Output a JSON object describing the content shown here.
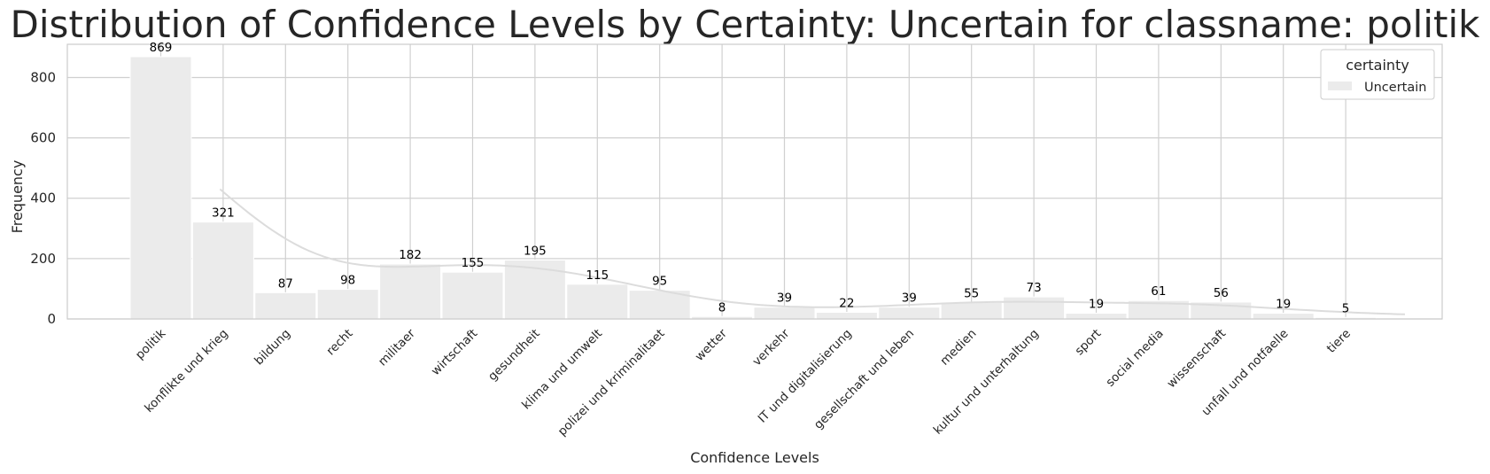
{
  "chart_data": {
    "type": "bar",
    "title": "Distribution of Confidence Levels by Certainty: Uncertain for classname: politik",
    "xlabel": "Confidence Levels",
    "ylabel": "Frequency",
    "ylim": [
      0,
      910
    ],
    "yticks": [
      0,
      200,
      400,
      600,
      800
    ],
    "grid": true,
    "legend": {
      "title": "certainty",
      "position": "top-right"
    },
    "categories": [
      "politik",
      "konflikte und krieg",
      "bildung",
      "recht",
      "militaer",
      "wirtschaft",
      "gesundheit",
      "klima und umwelt",
      "polizei und kriminalitaet",
      "wetter",
      "verkehr",
      "IT und digitalisierung",
      "gesellschaft und leben",
      "medien",
      "kultur und unterhaltung",
      "sport",
      "social media",
      "wissenschaft",
      "unfall und notfaelle",
      "tiere"
    ],
    "series": [
      {
        "name": "Uncertain",
        "values": [
          869,
          321,
          87,
          98,
          182,
          155,
          195,
          115,
          95,
          8,
          39,
          22,
          39,
          55,
          73,
          19,
          61,
          56,
          19,
          5
        ]
      }
    ],
    "kde_line": true,
    "colors": {
      "bar": "#ebebeb",
      "kde": "#dcdcdc",
      "grid": "#d0d0d0",
      "spine": "#cccccc"
    }
  }
}
